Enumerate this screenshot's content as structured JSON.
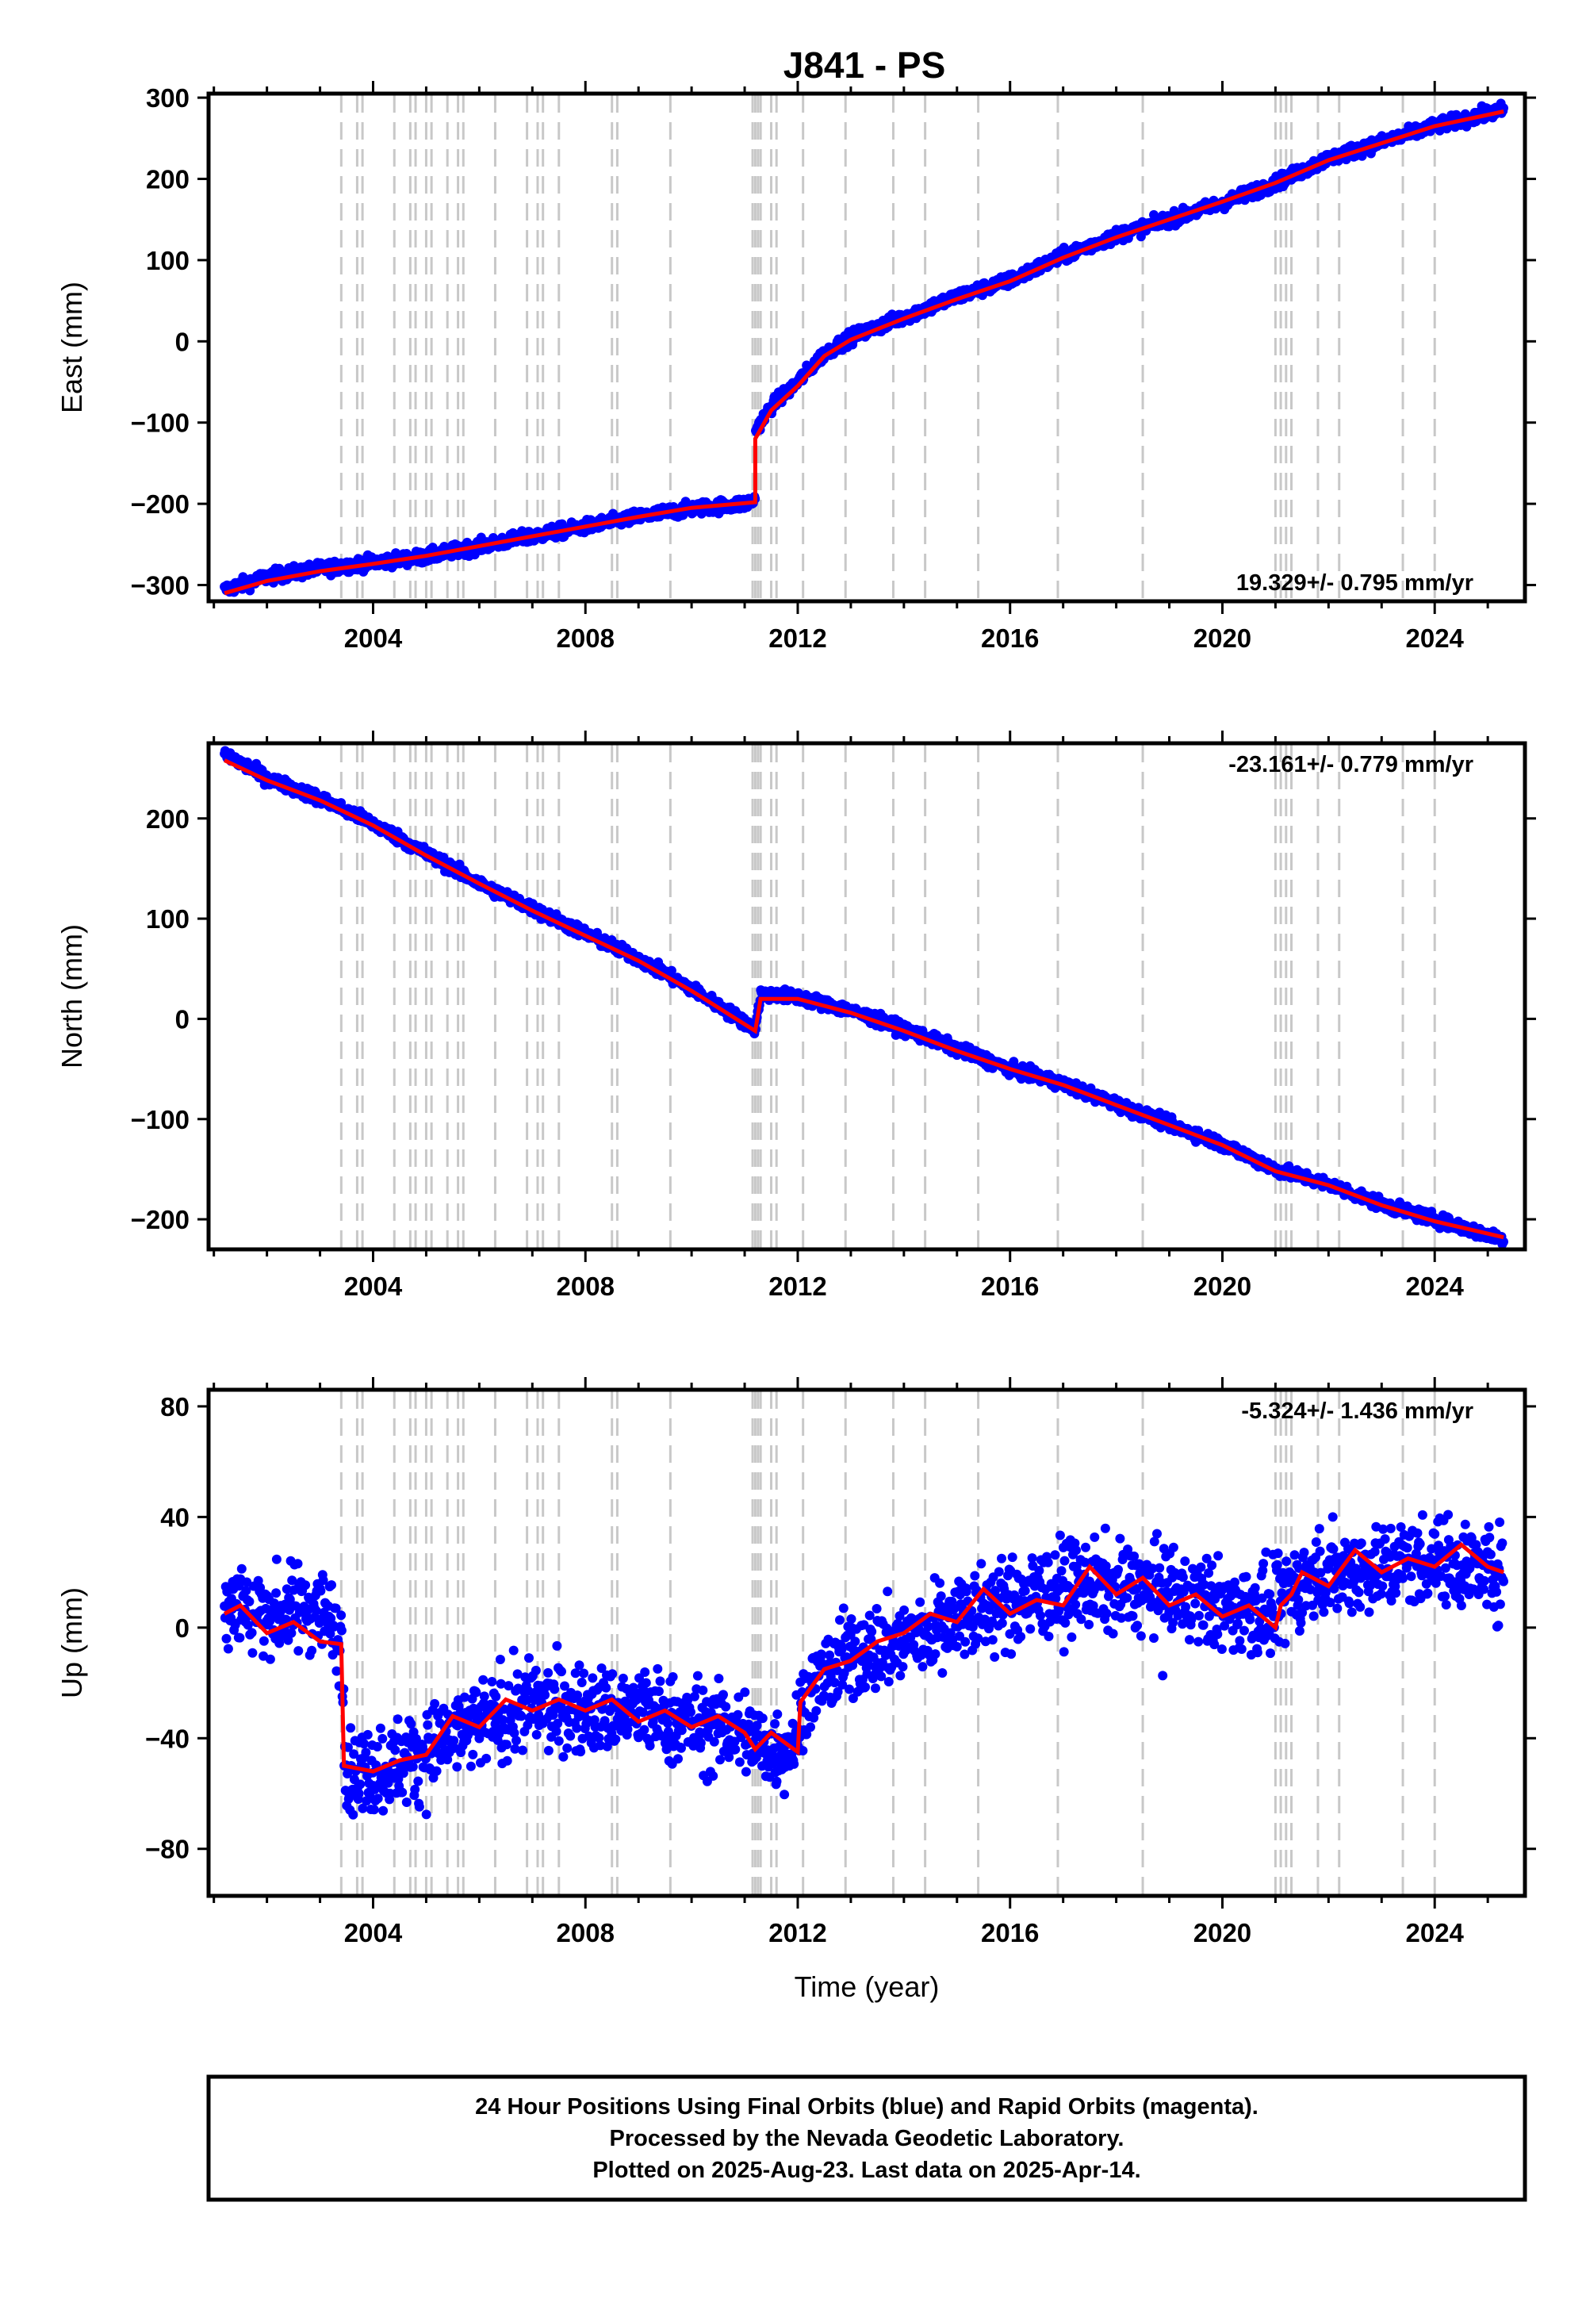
{
  "figure": {
    "title": "J841 - PS",
    "xlabel": "Time (year)",
    "footer": [
      "24 Hour Positions Using Final Orbits (blue) and Rapid Orbits (magenta).",
      "Processed by the Nevada Geodetic Laboratory.",
      "Plotted on 2025-Aug-23. Last data on 2025-Apr-14."
    ],
    "colors": {
      "data": "#0000ff",
      "model": "#ff0000",
      "event_lines": "#c8c8c8",
      "frame": "#000000"
    }
  },
  "chart_data": [
    {
      "type": "scatter",
      "component": "East",
      "ylabel": "East (mm)",
      "rate_text": "19.329+/- 0.795 mm/yr",
      "xlim": [
        2000.9,
        2025.7
      ],
      "ylim": [
        -320,
        305
      ],
      "xticks": [
        2004,
        2008,
        2012,
        2016,
        2020,
        2024
      ],
      "yticks": [
        -300,
        -200,
        -100,
        0,
        100,
        200,
        300
      ],
      "ytick_labels": [
        "−300",
        "−200",
        "−100",
        "0",
        "100",
        "200",
        "300"
      ],
      "series_points": [
        [
          2001.2,
          -306
        ],
        [
          2002,
          -290
        ],
        [
          2003,
          -280
        ],
        [
          2004,
          -272
        ],
        [
          2005,
          -265
        ],
        [
          2006,
          -252
        ],
        [
          2007,
          -240
        ],
        [
          2008,
          -228
        ],
        [
          2009,
          -216
        ],
        [
          2010,
          -206
        ],
        [
          2011,
          -200
        ],
        [
          2011.2,
          -195
        ],
        [
          2011.2,
          -110
        ],
        [
          2011.5,
          -80
        ],
        [
          2012,
          -50
        ],
        [
          2012.5,
          -15
        ],
        [
          2013,
          5
        ],
        [
          2014,
          30
        ],
        [
          2015,
          55
        ],
        [
          2016,
          75
        ],
        [
          2017,
          105
        ],
        [
          2018,
          130
        ],
        [
          2019,
          150
        ],
        [
          2020,
          170
        ],
        [
          2021,
          195
        ],
        [
          2022,
          225
        ],
        [
          2023,
          245
        ],
        [
          2024,
          265
        ],
        [
          2025.3,
          285
        ]
      ],
      "noise_mm": 4,
      "model_line": [
        [
          2001.2,
          -310
        ],
        [
          2002,
          -295
        ],
        [
          2003,
          -283
        ],
        [
          2004,
          -274
        ],
        [
          2005,
          -264
        ],
        [
          2006,
          -252
        ],
        [
          2007,
          -240
        ],
        [
          2008,
          -228
        ],
        [
          2009,
          -216
        ],
        [
          2010,
          -205
        ],
        [
          2011.2,
          -198
        ],
        [
          2011.2,
          -120
        ],
        [
          2011.5,
          -85
        ],
        [
          2012,
          -55
        ],
        [
          2012.5,
          -18
        ],
        [
          2013,
          2
        ],
        [
          2014,
          28
        ],
        [
          2015,
          52
        ],
        [
          2016,
          74
        ],
        [
          2017,
          103
        ],
        [
          2018,
          128
        ],
        [
          2019,
          150
        ],
        [
          2020,
          172
        ],
        [
          2021,
          195
        ],
        [
          2022,
          223
        ],
        [
          2023,
          244
        ],
        [
          2024,
          265
        ],
        [
          2025.3,
          283
        ]
      ],
      "event_years": [
        2003.4,
        2003.7,
        2003.8,
        2004.4,
        2004.7,
        2004.8,
        2005.0,
        2005.1,
        2005.4,
        2005.6,
        2005.7,
        2006.3,
        2006.9,
        2007.1,
        2007.2,
        2007.5,
        2008.5,
        2008.6,
        2009.6,
        2011.15,
        2011.2,
        2011.25,
        2011.3,
        2011.5,
        2011.6,
        2012.1,
        2012.9,
        2013.8,
        2014.4,
        2015.4,
        2016.9,
        2018.5,
        2021.0,
        2021.1,
        2021.2,
        2021.3,
        2021.8,
        2022.2,
        2023.4,
        2024.0
      ]
    },
    {
      "type": "scatter",
      "component": "North",
      "ylabel": "North (mm)",
      "rate_text": "-23.161+/- 0.779 mm/yr",
      "xlim": [
        2000.9,
        2025.7
      ],
      "ylim": [
        -230,
        275
      ],
      "xticks": [
        2004,
        2008,
        2012,
        2016,
        2020,
        2024
      ],
      "yticks": [
        -200,
        -100,
        0,
        100,
        200
      ],
      "ytick_labels": [
        "−200",
        "−100",
        "0",
        "100",
        "200"
      ],
      "series_points": [
        [
          2001.2,
          265
        ],
        [
          2002,
          240
        ],
        [
          2003,
          220
        ],
        [
          2004,
          195
        ],
        [
          2005,
          165
        ],
        [
          2006,
          135
        ],
        [
          2007,
          110
        ],
        [
          2008,
          85
        ],
        [
          2009,
          60
        ],
        [
          2010,
          30
        ],
        [
          2011.2,
          -10
        ],
        [
          2011.3,
          25
        ],
        [
          2012,
          22
        ],
        [
          2013,
          8
        ],
        [
          2014,
          -10
        ],
        [
          2015,
          -30
        ],
        [
          2016,
          -50
        ],
        [
          2017,
          -65
        ],
        [
          2018,
          -85
        ],
        [
          2019,
          -105
        ],
        [
          2020,
          -125
        ],
        [
          2021,
          -150
        ],
        [
          2022,
          -165
        ],
        [
          2023,
          -185
        ],
        [
          2024,
          -200
        ],
        [
          2025.3,
          -220
        ]
      ],
      "noise_mm": 3,
      "model_line": [
        [
          2001.2,
          258
        ],
        [
          2002,
          238
        ],
        [
          2003,
          218
        ],
        [
          2004,
          193
        ],
        [
          2005,
          163
        ],
        [
          2006,
          135
        ],
        [
          2007,
          108
        ],
        [
          2008,
          83
        ],
        [
          2009,
          58
        ],
        [
          2010,
          28
        ],
        [
          2011.2,
          -12
        ],
        [
          2011.3,
          20
        ],
        [
          2012,
          20
        ],
        [
          2013,
          6
        ],
        [
          2014,
          -12
        ],
        [
          2015,
          -32
        ],
        [
          2016,
          -50
        ],
        [
          2017,
          -66
        ],
        [
          2018,
          -86
        ],
        [
          2019,
          -106
        ],
        [
          2020,
          -126
        ],
        [
          2021,
          -152
        ],
        [
          2022,
          -166
        ],
        [
          2023,
          -186
        ],
        [
          2024,
          -202
        ],
        [
          2025.3,
          -218
        ]
      ],
      "event_years": [
        2003.4,
        2003.7,
        2003.8,
        2004.4,
        2004.7,
        2004.8,
        2005.0,
        2005.1,
        2005.4,
        2005.6,
        2005.7,
        2006.3,
        2006.9,
        2007.1,
        2007.2,
        2007.5,
        2008.5,
        2008.6,
        2009.6,
        2011.15,
        2011.2,
        2011.25,
        2011.3,
        2011.5,
        2011.6,
        2012.1,
        2012.9,
        2013.8,
        2014.4,
        2015.4,
        2016.9,
        2018.5,
        2021.0,
        2021.1,
        2021.2,
        2021.3,
        2021.8,
        2022.2,
        2023.4,
        2024.0
      ]
    },
    {
      "type": "scatter",
      "component": "Up",
      "ylabel": "Up (mm)",
      "rate_text": "-5.324+/- 1.436 mm/yr",
      "xlim": [
        2000.9,
        2025.7
      ],
      "ylim": [
        -97,
        86
      ],
      "xticks": [
        2004,
        2008,
        2012,
        2016,
        2020,
        2024
      ],
      "yticks": [
        -80,
        -40,
        0,
        40,
        80
      ],
      "ytick_labels": [
        "−80",
        "−40",
        "0",
        "40",
        "80"
      ],
      "series_points": [
        [
          2001.2,
          10
        ],
        [
          2002,
          5
        ],
        [
          2003,
          8
        ],
        [
          2003.4,
          -5
        ],
        [
          2003.5,
          -52
        ],
        [
          2004,
          -52
        ],
        [
          2005,
          -45
        ],
        [
          2006,
          -35
        ],
        [
          2007,
          -28
        ],
        [
          2008,
          -30
        ],
        [
          2009,
          -30
        ],
        [
          2010,
          -35
        ],
        [
          2011,
          -38
        ],
        [
          2011.5,
          -45
        ],
        [
          2012,
          -40
        ],
        [
          2012.1,
          -25
        ],
        [
          2013,
          -10
        ],
        [
          2014,
          -5
        ],
        [
          2015,
          5
        ],
        [
          2016,
          8
        ],
        [
          2017,
          15
        ],
        [
          2018,
          15
        ],
        [
          2019,
          12
        ],
        [
          2020,
          8
        ],
        [
          2021,
          5
        ],
        [
          2021.3,
          15
        ],
        [
          2022,
          20
        ],
        [
          2023,
          22
        ],
        [
          2024,
          25
        ],
        [
          2025.3,
          20
        ]
      ],
      "noise_mm": 8,
      "model_line": [
        [
          2001.2,
          5
        ],
        [
          2001.5,
          8
        ],
        [
          2002,
          -2
        ],
        [
          2002.5,
          2
        ],
        [
          2003,
          -5
        ],
        [
          2003.4,
          -6
        ],
        [
          2003.45,
          -50
        ],
        [
          2004,
          -52
        ],
        [
          2004.5,
          -48
        ],
        [
          2005,
          -46
        ],
        [
          2005.5,
          -32
        ],
        [
          2006,
          -36
        ],
        [
          2006.5,
          -26
        ],
        [
          2007,
          -30
        ],
        [
          2007.5,
          -26
        ],
        [
          2008,
          -30
        ],
        [
          2008.5,
          -26
        ],
        [
          2009,
          -34
        ],
        [
          2009.5,
          -30
        ],
        [
          2010,
          -36
        ],
        [
          2010.5,
          -32
        ],
        [
          2011,
          -38
        ],
        [
          2011.2,
          -44
        ],
        [
          2011.5,
          -38
        ],
        [
          2012,
          -45
        ],
        [
          2012.05,
          -27
        ],
        [
          2012.5,
          -15
        ],
        [
          2013,
          -12
        ],
        [
          2013.5,
          -5
        ],
        [
          2014,
          -2
        ],
        [
          2014.5,
          5
        ],
        [
          2015,
          2
        ],
        [
          2015.5,
          14
        ],
        [
          2016,
          5
        ],
        [
          2016.5,
          10
        ],
        [
          2017,
          8
        ],
        [
          2017.5,
          22
        ],
        [
          2018,
          12
        ],
        [
          2018.5,
          18
        ],
        [
          2019,
          8
        ],
        [
          2019.5,
          12
        ],
        [
          2020,
          4
        ],
        [
          2020.5,
          8
        ],
        [
          2021,
          0
        ],
        [
          2021.1,
          8
        ],
        [
          2021.3,
          12
        ],
        [
          2021.5,
          20
        ],
        [
          2022,
          15
        ],
        [
          2022.5,
          28
        ],
        [
          2023,
          20
        ],
        [
          2023.5,
          25
        ],
        [
          2024,
          22
        ],
        [
          2024.5,
          30
        ],
        [
          2025,
          22
        ],
        [
          2025.3,
          20
        ]
      ],
      "event_years": [
        2003.4,
        2003.7,
        2003.8,
        2004.4,
        2004.7,
        2004.8,
        2005.0,
        2005.1,
        2005.4,
        2005.6,
        2005.7,
        2006.3,
        2006.9,
        2007.1,
        2007.2,
        2007.5,
        2008.5,
        2008.6,
        2009.6,
        2011.15,
        2011.2,
        2011.25,
        2011.3,
        2011.5,
        2011.6,
        2012.1,
        2012.9,
        2013.8,
        2014.4,
        2015.4,
        2016.9,
        2018.5,
        2021.0,
        2021.1,
        2021.2,
        2021.3,
        2021.8,
        2022.2,
        2023.4,
        2024.0
      ]
    }
  ]
}
